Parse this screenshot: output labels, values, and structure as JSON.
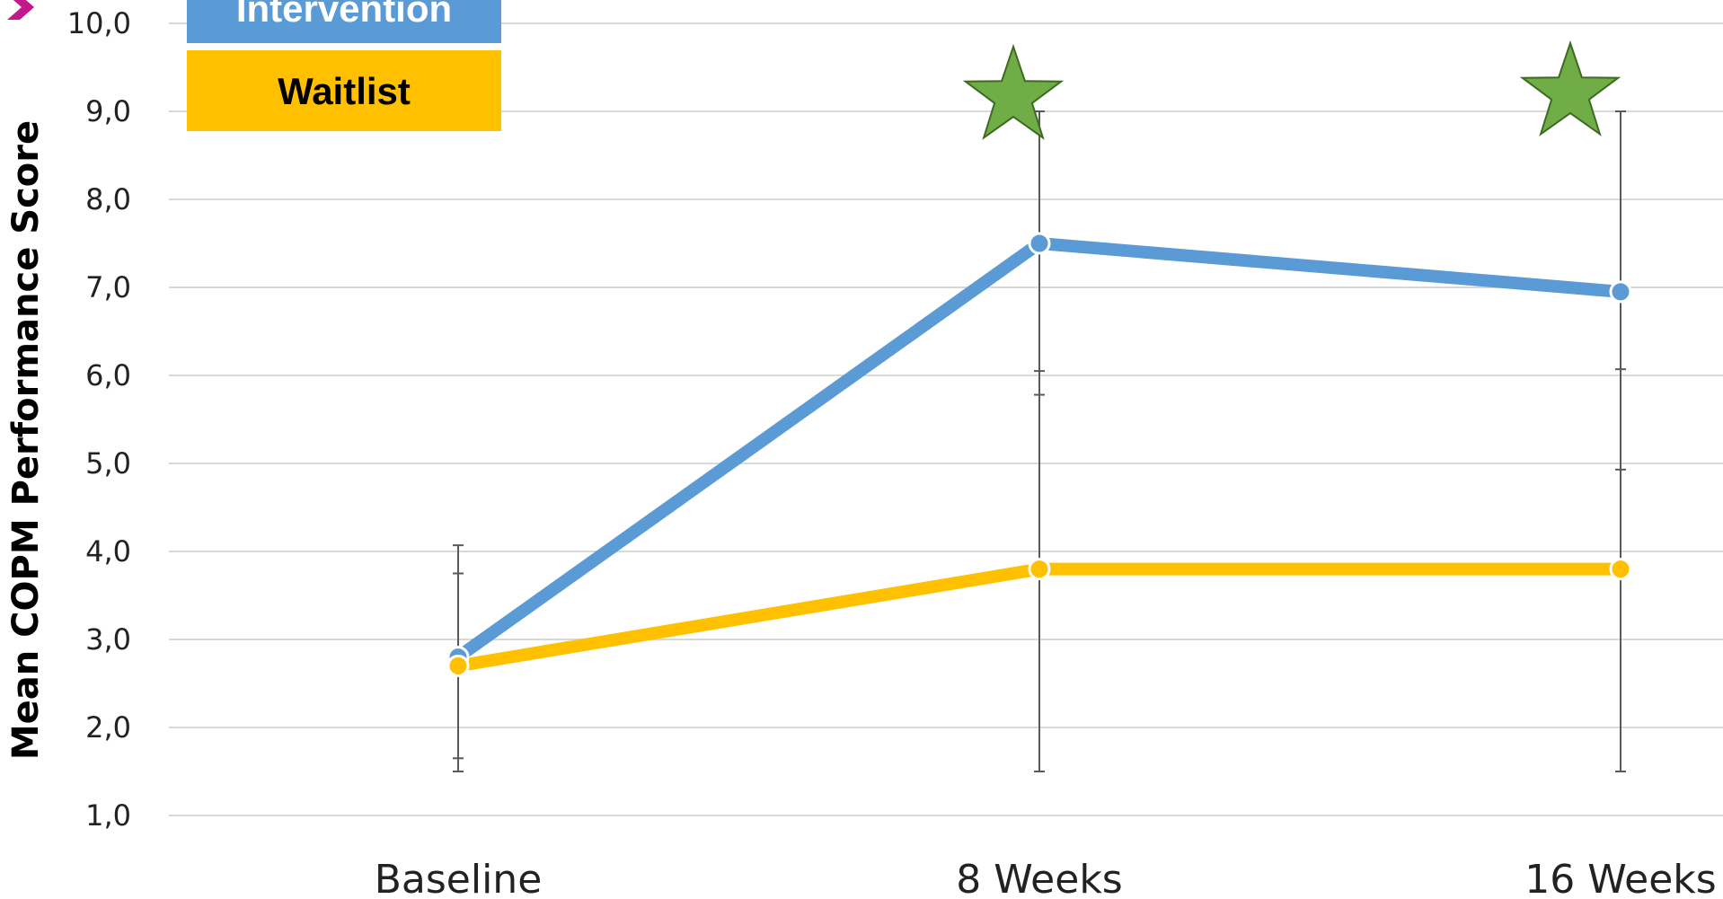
{
  "chart_data": {
    "type": "line",
    "categories": [
      "Baseline",
      "8 Weeks",
      "16 Weeks"
    ],
    "ylabel": "Mean COPM Performance Score",
    "ylim": [
      1.0,
      10.0
    ],
    "yticks": [
      "1,0",
      "2,0",
      "3,0",
      "4,0",
      "5,0",
      "6,0",
      "7,0",
      "8,0",
      "9,0",
      "10,0"
    ],
    "grid": true,
    "legend_position": "top-left",
    "series": [
      {
        "name": "Intervention",
        "color": "#5b9bd5",
        "values": [
          2.8,
          7.5,
          6.95
        ],
        "error_low": [
          1.5,
          1.5,
          1.5
        ],
        "error_high": [
          4.07,
          9.0,
          9.0
        ]
      },
      {
        "name": "Waitlist",
        "color": "#ffc000",
        "values": [
          2.7,
          3.8,
          3.8
        ],
        "error_low": [
          1.65,
          5.78,
          4.93
        ],
        "error_high": [
          3.75,
          6.05,
          6.07
        ]
      }
    ],
    "significance_marker": {
      "symbol": "star",
      "color": "#70ad47",
      "categories": [
        "8 Weeks",
        "16 Weeks"
      ]
    }
  }
}
